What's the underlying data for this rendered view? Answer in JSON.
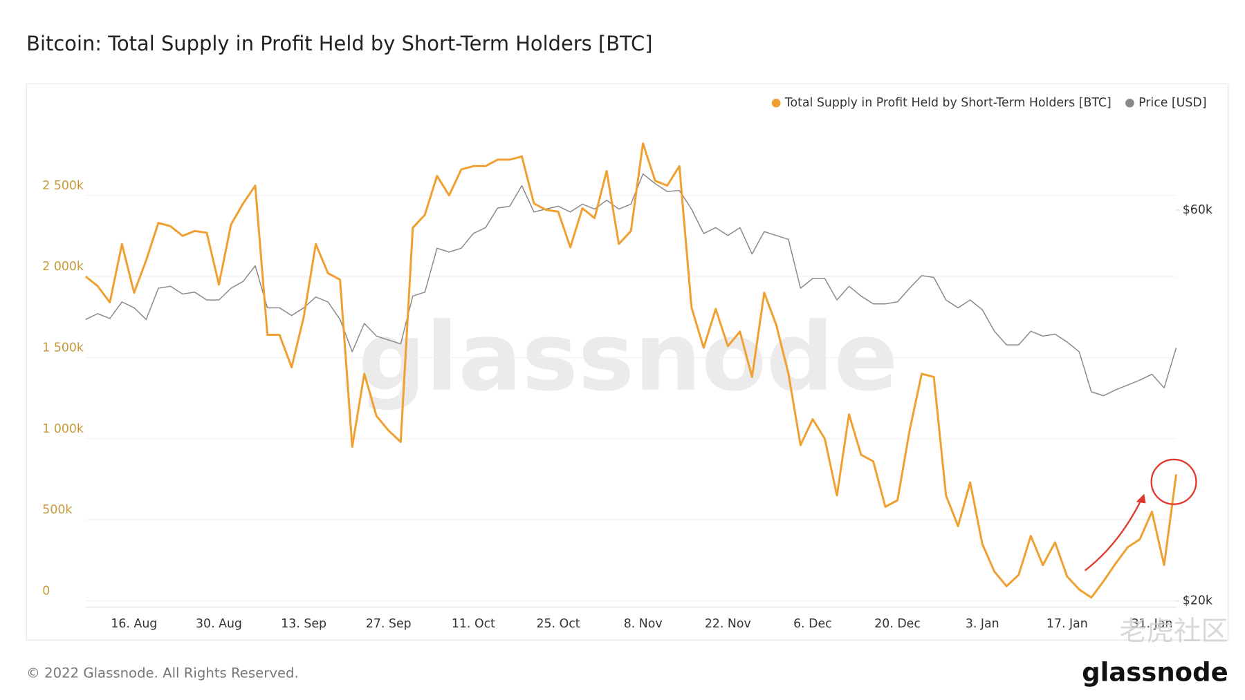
{
  "chart_data": {
    "type": "line",
    "title": "Bitcoin: Total Supply in Profit Held by Short-Term Holders [BTC]",
    "watermark": "glassnode",
    "footer": "© 2022 Glassnode. All Rights Reserved.",
    "logo": "glassnode",
    "overlay_watermark": "老虎社区",
    "legend_position": "top-right",
    "grid": true,
    "categories": [
      null,
      null,
      null,
      null,
      "16. Aug",
      null,
      null,
      null,
      null,
      null,
      null,
      "30. Aug",
      null,
      null,
      null,
      null,
      null,
      null,
      "13. Sep",
      null,
      null,
      null,
      null,
      null,
      null,
      "27. Sep",
      null,
      null,
      null,
      null,
      null,
      null,
      "11. Oct",
      null,
      null,
      null,
      null,
      null,
      null,
      "25. Oct",
      null,
      null,
      null,
      null,
      null,
      null,
      "8. Nov",
      null,
      null,
      null,
      null,
      null,
      null,
      "22. Nov",
      null,
      null,
      null,
      null,
      null,
      null,
      "6. Dec",
      null,
      null,
      null,
      null,
      null,
      null,
      "20. Dec",
      null,
      null,
      null,
      null,
      null,
      null,
      "3. Jan",
      null,
      null,
      null,
      null,
      null,
      null,
      "17. Jan",
      null,
      null,
      null,
      null,
      null,
      null,
      "31. Jan",
      null,
      null
    ],
    "ylim": [
      -40000,
      3000000
    ],
    "yticks": [
      0,
      {
        "value": 500000,
        "label": "500k"
      },
      {
        "value": 1000000,
        "label": "1 000k"
      },
      {
        "value": 1500000,
        "label": "1 500k"
      },
      {
        "value": 2000000,
        "label": "2 000k"
      },
      {
        "value": 2500000,
        "label": "2 500k"
      }
    ],
    "y2lim": [
      19350,
      69800
    ],
    "y2ticks": [
      {
        "value": 20000,
        "label": "$20k"
      },
      {
        "value": 60000,
        "label": "$60k"
      }
    ],
    "series": [
      {
        "name": "Total Supply in Profit Held by Short-Term Holders [BTC]",
        "color": "#f0a030",
        "axis": "y",
        "values": [
          2000000,
          1940000,
          1840000,
          2200000,
          1900000,
          2100000,
          2330000,
          2310000,
          2250000,
          2280000,
          2270000,
          1950000,
          2320000,
          2450000,
          2560000,
          1640000,
          1640000,
          1440000,
          1750000,
          2200000,
          2020000,
          1980000,
          950000,
          1400000,
          1140000,
          1050000,
          980000,
          2300000,
          2380000,
          2620000,
          2500000,
          2660000,
          2680000,
          2680000,
          2720000,
          2720000,
          2740000,
          2450000,
          2410000,
          2400000,
          2180000,
          2420000,
          2360000,
          2650000,
          2200000,
          2280000,
          2820000,
          2590000,
          2560000,
          2680000,
          1810000,
          1560000,
          1800000,
          1570000,
          1660000,
          1380000,
          1900000,
          1700000,
          1400000,
          960000,
          1120000,
          1000000,
          650000,
          1150000,
          900000,
          860000,
          580000,
          620000,
          1050000,
          1400000,
          1380000,
          650000,
          460000,
          730000,
          350000,
          180000,
          90000,
          160000,
          400000,
          220000,
          360000,
          150000,
          70000,
          20000,
          120000,
          230000,
          330000,
          380000,
          550000,
          220000,
          780000
        ]
      },
      {
        "name": "Price [USD]",
        "color": "#8a8a8a",
        "axis": "y2",
        "values": [
          48800,
          49400,
          48900,
          50600,
          50000,
          48800,
          52000,
          52200,
          51400,
          51600,
          50800,
          50800,
          52000,
          52700,
          54300,
          50000,
          50000,
          49200,
          50000,
          51100,
          50600,
          48800,
          45500,
          48400,
          47100,
          46700,
          46300,
          51200,
          51600,
          56100,
          55700,
          56100,
          57600,
          58200,
          60200,
          60400,
          62500,
          59800,
          60100,
          60400,
          59800,
          60600,
          60100,
          61000,
          60100,
          60600,
          63700,
          62700,
          61900,
          62000,
          60100,
          57600,
          58200,
          57400,
          58200,
          55500,
          57800,
          57400,
          57000,
          52000,
          53000,
          53000,
          50800,
          52200,
          51200,
          50400,
          50400,
          50600,
          52000,
          53300,
          53100,
          50800,
          50000,
          50800,
          49800,
          47600,
          46200,
          46200,
          47600,
          47100,
          47300,
          46500,
          45500,
          41400,
          41000,
          41600,
          42100,
          42600,
          43200,
          41800,
          45900
        ]
      }
    ]
  }
}
